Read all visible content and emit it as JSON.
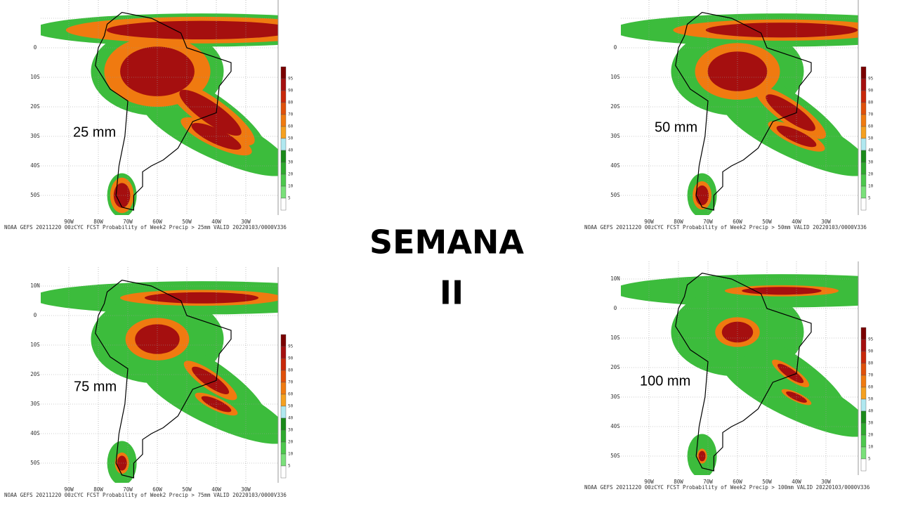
{
  "title": [
    "SEMANA",
    "II"
  ],
  "lat_labels": [
    "10N",
    "0",
    "10S",
    "20S",
    "30S",
    "40S",
    "50S"
  ],
  "lon_labels": [
    "90W",
    "80W",
    "70W",
    "60W",
    "50W",
    "40W",
    "30W"
  ],
  "colorbar": [
    "95",
    "90",
    "80",
    "70",
    "60",
    "50",
    "40",
    "30",
    "20",
    "10",
    "5"
  ],
  "maps": [
    {
      "threshold": "25 mm",
      "caption": "NOAA GEFS 20211220 00zCYC FCST Probability of Week2 Precip > 25mm  VALID 20220103/0000V336"
    },
    {
      "threshold": "50 mm",
      "caption": "NOAA GEFS 20211220 00zCYC FCST Probability of Week2 Precip > 50mm  VALID 20220103/0000V336"
    },
    {
      "threshold": "75 mm",
      "caption": "NOAA GEFS 20211220 00zCYC FCST Probability of Week2 Precip > 75mm  VALID 20220103/0000V336"
    },
    {
      "threshold": "100 mm",
      "caption": "NOAA GEFS 20211220 00zCYC FCST Probability of Week2 Precip > 100mm  VALID 20220103/0000V336"
    }
  ]
}
